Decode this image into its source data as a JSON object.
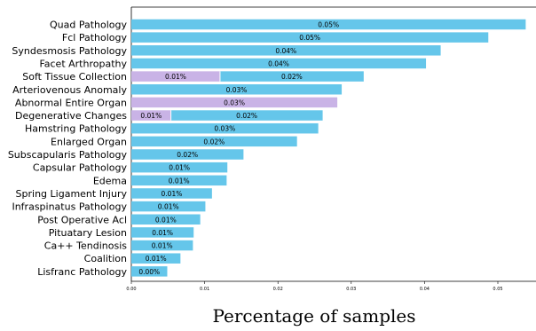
{
  "chart_data": {
    "type": "bar",
    "orientation": "horizontal",
    "stacked": true,
    "xlabel": "Percentage of samples",
    "xlim": [
      0,
      0.055
    ],
    "xticks": [
      "0.00",
      "0.01",
      "0.02",
      "0.03",
      "0.04",
      "0.05"
    ],
    "grid": false,
    "colors": {
      "primary": "#65c6ea",
      "secondary": "#c9b3e6"
    },
    "categories": [
      "Quad Pathology",
      "Fcl Pathology",
      "Syndesmosis Pathology",
      "Facet Arthropathy",
      "Soft Tissue Collection",
      "Arteriovenous Anomaly",
      "Abnormal Entire Organ",
      "Degenerative Changes",
      "Hamstring Pathology",
      "Enlarged Organ",
      "Subscapularis Pathology",
      "Capsular Pathology",
      "Edema",
      "Spring Ligament Injury",
      "Infraspinatus Pathology",
      "Post Operative Acl",
      "Pituatary Lesion",
      "Ca++ Tendinosis",
      "Coalition",
      "Lisfranc Pathology"
    ],
    "bars": [
      {
        "segments": [
          {
            "value": 0.0538,
            "label": "0.05%",
            "color": "primary"
          }
        ]
      },
      {
        "segments": [
          {
            "value": 0.0487,
            "label": "0.05%",
            "color": "primary"
          }
        ]
      },
      {
        "segments": [
          {
            "value": 0.0422,
            "label": "0.04%",
            "color": "primary"
          }
        ]
      },
      {
        "segments": [
          {
            "value": 0.0402,
            "label": "0.04%",
            "color": "primary"
          }
        ]
      },
      {
        "segments": [
          {
            "value": 0.0121,
            "label": "0.01%",
            "color": "secondary"
          },
          {
            "value": 0.0196,
            "label": "0.02%",
            "color": "primary"
          }
        ]
      },
      {
        "segments": [
          {
            "value": 0.0287,
            "label": "0.03%",
            "color": "primary"
          }
        ]
      },
      {
        "segments": [
          {
            "value": 0.0281,
            "label": "0.03%",
            "color": "secondary"
          }
        ]
      },
      {
        "segments": [
          {
            "value": 0.0054,
            "label": "0.01%",
            "color": "secondary"
          },
          {
            "value": 0.0207,
            "label": "0.02%",
            "color": "primary"
          }
        ]
      },
      {
        "segments": [
          {
            "value": 0.0255,
            "label": "0.03%",
            "color": "primary"
          }
        ]
      },
      {
        "segments": [
          {
            "value": 0.0226,
            "label": "0.02%",
            "color": "primary"
          }
        ]
      },
      {
        "segments": [
          {
            "value": 0.0153,
            "label": "0.02%",
            "color": "primary"
          }
        ]
      },
      {
        "segments": [
          {
            "value": 0.0131,
            "label": "0.01%",
            "color": "primary"
          }
        ]
      },
      {
        "segments": [
          {
            "value": 0.013,
            "label": "0.01%",
            "color": "primary"
          }
        ]
      },
      {
        "segments": [
          {
            "value": 0.011,
            "label": "0.01%",
            "color": "primary"
          }
        ]
      },
      {
        "segments": [
          {
            "value": 0.0101,
            "label": "0.01%",
            "color": "primary"
          }
        ]
      },
      {
        "segments": [
          {
            "value": 0.0094,
            "label": "0.01%",
            "color": "primary"
          }
        ]
      },
      {
        "segments": [
          {
            "value": 0.0085,
            "label": "0.01%",
            "color": "primary"
          }
        ]
      },
      {
        "segments": [
          {
            "value": 0.0084,
            "label": "0.01%",
            "color": "primary"
          }
        ]
      },
      {
        "segments": [
          {
            "value": 0.0067,
            "label": "0.01%",
            "color": "primary"
          }
        ]
      },
      {
        "segments": [
          {
            "value": 0.0049,
            "label": "0.00%",
            "color": "primary"
          }
        ]
      }
    ]
  }
}
